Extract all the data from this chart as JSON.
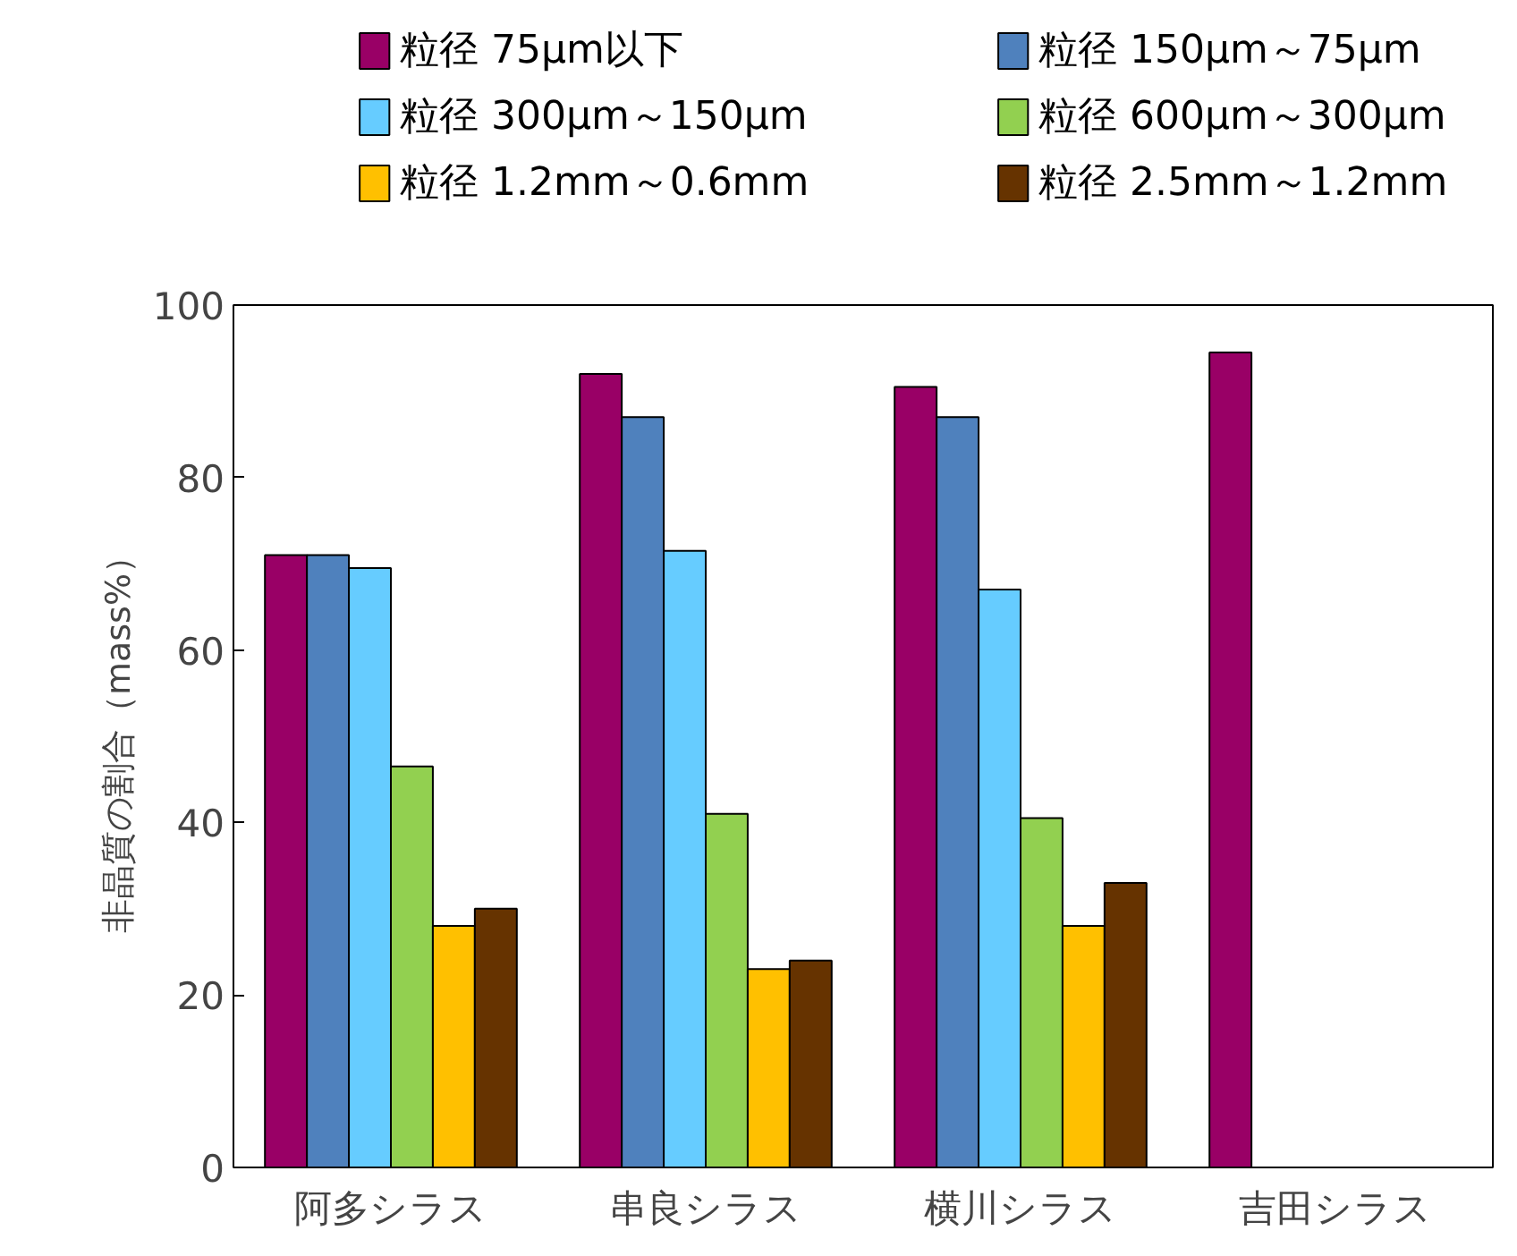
{
  "chart_data": {
    "type": "bar",
    "ylabel": "非晶質の割合（mass%）",
    "categories": [
      "阿多シラス",
      "串良シラス",
      "横川シラス",
      "吉田シラス"
    ],
    "ylim": [
      0,
      100
    ],
    "yticks": [
      0,
      20,
      40,
      60,
      80,
      100
    ],
    "grid": false,
    "legend": "top",
    "series": [
      {
        "name": "粒径 75μm以下",
        "color": "#990066",
        "values": [
          71,
          92,
          90.5,
          94.5
        ]
      },
      {
        "name": "粒径 150μm～75μm",
        "color": "#4f81bd",
        "values": [
          71,
          87,
          87,
          null
        ]
      },
      {
        "name": "粒径 300μm～150μm",
        "color": "#66ccff",
        "values": [
          69.5,
          71.5,
          67,
          null
        ]
      },
      {
        "name": "粒径 600μm～300μm",
        "color": "#92d050",
        "values": [
          46.5,
          41,
          40.5,
          null
        ]
      },
      {
        "name": "粒径 1.2mm～0.6mm",
        "color": "#ffc000",
        "values": [
          28,
          23,
          28,
          null
        ]
      },
      {
        "name": "粒径 2.5mm～1.2mm",
        "color": "#663300",
        "values": [
          30,
          24,
          33,
          null
        ]
      }
    ]
  }
}
